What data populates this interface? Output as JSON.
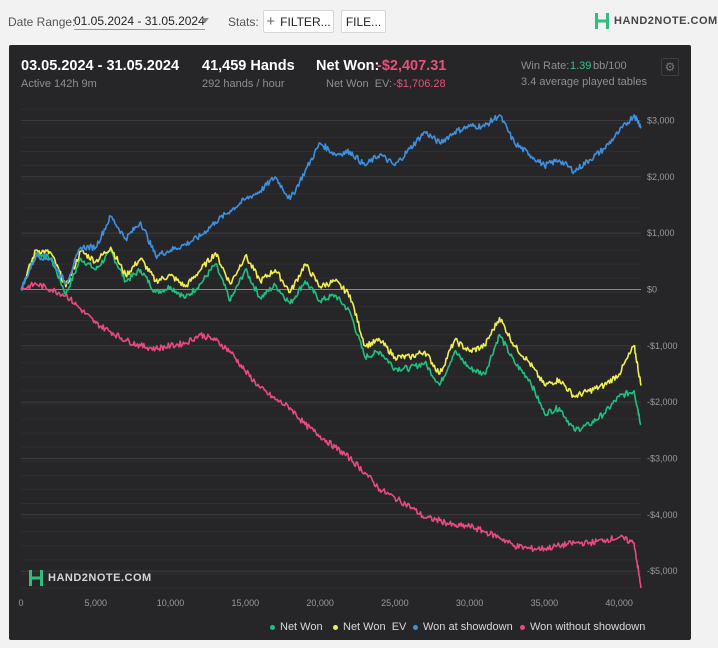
{
  "toolbar": {
    "date_range_label": "Date Range:",
    "date_range_value": "01.05.2024 - 31.05.2024",
    "stats_label": "Stats:",
    "filter_button": "FILTER...",
    "file_button": "FILE...",
    "brand": "HAND2NOTE.COM"
  },
  "summary": {
    "period": "03.05.2024 - 31.05.2024",
    "active": "Active 142h 9m",
    "hands": "41,459 Hands",
    "hands_per_hour": "292 hands / hour",
    "net_won_label": "Net Won:",
    "net_won_value": "-$2,407.31",
    "net_won_ev_label": "Net Won  EV:",
    "net_won_ev_value": "-$1,706.28",
    "win_rate_label": "Win Rate:",
    "win_rate_value": "1.39",
    "win_rate_unit": "bb/100",
    "avg_tables": "3.4 average played tables"
  },
  "colors": {
    "net_won": "#1fbf80",
    "net_won_ev": "#f0ee50",
    "showdown": "#3d8fe0",
    "non_showdown": "#e84a7f",
    "background": "#262628"
  },
  "chart_data": {
    "type": "line",
    "x_label": "",
    "y_label": "",
    "xlim": [
      0,
      41459
    ],
    "ylim": [
      -5300,
      3400
    ],
    "x_ticks": [
      0,
      5000,
      10000,
      15000,
      20000,
      25000,
      30000,
      35000,
      40000
    ],
    "x_tick_labels": [
      "0",
      "5,000",
      "10,000",
      "15,000",
      "20,000",
      "25,000",
      "30,000",
      "35,000",
      "40,000"
    ],
    "y_ticks": [
      3000,
      2000,
      1000,
      0,
      -1000,
      -2000,
      -3000,
      -4000,
      -5000
    ],
    "y_tick_labels": [
      "$3,000",
      "$2,000",
      "$1,000",
      "$0",
      "-$1,000",
      "-$2,000",
      "-$3,000",
      "-$4,000",
      "-$5,000"
    ],
    "grid": true,
    "legend_position": "bottom-right",
    "x": [
      0,
      1000,
      2000,
      3000,
      4000,
      5000,
      6000,
      7000,
      8000,
      9000,
      10000,
      11000,
      12000,
      13000,
      14000,
      15000,
      16000,
      17000,
      18000,
      19000,
      20000,
      21000,
      22000,
      23000,
      24000,
      25000,
      26000,
      27000,
      28000,
      29000,
      30000,
      31000,
      32000,
      33000,
      34000,
      35000,
      36000,
      37000,
      38000,
      39000,
      40000,
      41000,
      41459
    ],
    "series": [
      {
        "name": "Net Won",
        "color_key": "net_won",
        "values": [
          0,
          650,
          550,
          -80,
          550,
          350,
          680,
          150,
          350,
          -50,
          50,
          -150,
          100,
          450,
          -200,
          350,
          -150,
          80,
          -250,
          150,
          -200,
          -100,
          -400,
          -1200,
          -1100,
          -1400,
          -1400,
          -1300,
          -1700,
          -1100,
          -1400,
          -1500,
          -800,
          -1300,
          -1600,
          -2200,
          -2100,
          -2500,
          -2400,
          -2200,
          -1900,
          -1800,
          -2400
        ]
      },
      {
        "name": "Net Won  EV",
        "color_key": "net_won_ev",
        "values": [
          0,
          700,
          650,
          50,
          680,
          500,
          750,
          250,
          550,
          150,
          250,
          50,
          350,
          650,
          100,
          600,
          150,
          350,
          -50,
          450,
          50,
          150,
          -100,
          -1000,
          -900,
          -1200,
          -1200,
          -1100,
          -1500,
          -900,
          -1100,
          -1000,
          -500,
          -1000,
          -1300,
          -1700,
          -1600,
          -1900,
          -1800,
          -1700,
          -1500,
          -1000,
          -1706
        ]
      },
      {
        "name": "Won at showdown",
        "color_key": "showdown",
        "values": [
          0,
          600,
          550,
          100,
          750,
          750,
          1300,
          900,
          1200,
          600,
          700,
          800,
          950,
          1200,
          1400,
          1600,
          1750,
          2000,
          1600,
          2100,
          2600,
          2400,
          2450,
          2200,
          2400,
          2200,
          2500,
          2800,
          2600,
          2800,
          2900,
          2900,
          3100,
          2600,
          2400,
          2200,
          2300,
          2100,
          2300,
          2500,
          2800,
          3100,
          2900
        ]
      },
      {
        "name": "Won without showdown",
        "color_key": "non_showdown",
        "values": [
          0,
          100,
          0,
          -100,
          -350,
          -600,
          -750,
          -900,
          -1000,
          -1050,
          -1000,
          -950,
          -800,
          -900,
          -1100,
          -1450,
          -1750,
          -1950,
          -2100,
          -2400,
          -2600,
          -2800,
          -3000,
          -3250,
          -3550,
          -3700,
          -3850,
          -4050,
          -4100,
          -4200,
          -4200,
          -4300,
          -4400,
          -4550,
          -4600,
          -4600,
          -4550,
          -4500,
          -4500,
          -4450,
          -4400,
          -4500,
          -5300
        ]
      }
    ]
  },
  "legend": [
    {
      "label": "Net Won",
      "color_key": "net_won"
    },
    {
      "label": "Net Won  EV",
      "color_key": "net_won_ev"
    },
    {
      "label": "Won at showdown",
      "color_key": "showdown"
    },
    {
      "label": "Won without showdown",
      "color_key": "non_showdown"
    }
  ],
  "icons": {
    "logo": "hand2note-logo-icon",
    "settings": "gear-icon",
    "dropdown": "chevron-down-icon",
    "add": "plus-icon"
  }
}
